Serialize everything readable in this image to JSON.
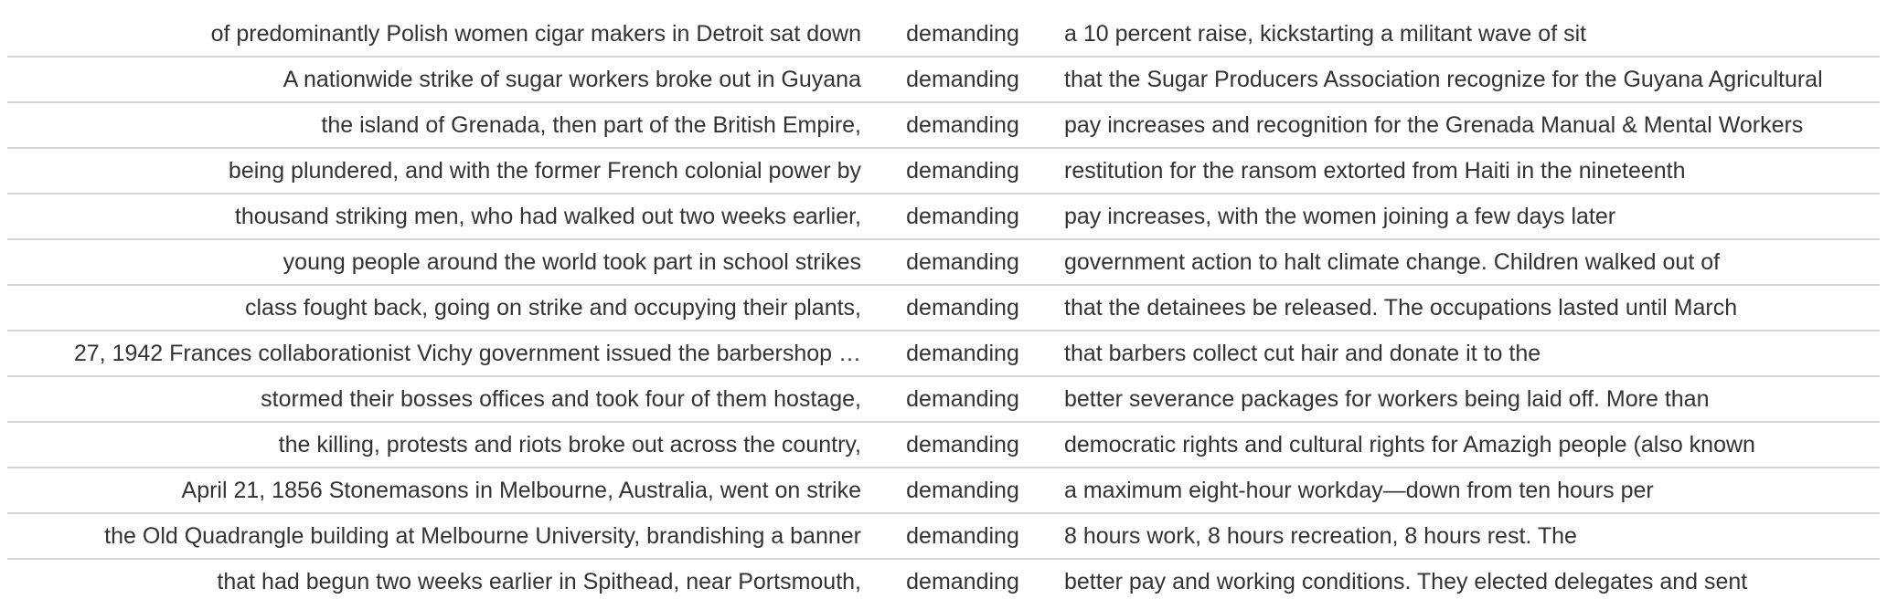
{
  "rows": [
    {
      "left": "of predominantly Polish women cigar makers in Detroit sat down",
      "keyword": "demanding",
      "right": "a 10 percent raise, kickstarting a militant wave of sit"
    },
    {
      "left": "A nationwide strike of sugar workers broke out in Guyana",
      "keyword": "demanding",
      "right": "that the Sugar Producers Association recognize for the Guyana Agricultural"
    },
    {
      "left": "the island of Grenada, then part of the British Empire,",
      "keyword": "demanding",
      "right": "pay increases and recognition for the Grenada Manual & Mental Workers"
    },
    {
      "left": "being plundered, and with the former French colonial power by",
      "keyword": "demanding",
      "right": "restitution for the ransom extorted from Haiti in the nineteenth"
    },
    {
      "left": "thousand striking men, who had walked out two weeks earlier,",
      "keyword": "demanding",
      "right": "pay increases, with the women joining a few days later"
    },
    {
      "left": "young people around the world took part in school strikes",
      "keyword": "demanding",
      "right": "government action to halt climate change. Children walked out of"
    },
    {
      "left": "class fought back, going on strike and occupying their plants,",
      "keyword": "demanding",
      "right": "that the detainees be released. The occupations lasted until March"
    },
    {
      "left": "27, 1942 Frances collaborationist Vichy government issued the barbershop …",
      "keyword": "demanding",
      "right": "that barbers collect cut hair and donate it to the"
    },
    {
      "left": "stormed their bosses offices and took four of them hostage,",
      "keyword": "demanding",
      "right": "better severance packages for workers being laid off. More than"
    },
    {
      "left": "the killing, protests and riots broke out across the country,",
      "keyword": "demanding",
      "right": "democratic rights and cultural rights for Amazigh people (also known"
    },
    {
      "left": "April 21, 1856 Stonemasons in Melbourne, Australia, went on strike",
      "keyword": "demanding",
      "right": "a maximum eight-hour workday—down from ten hours per"
    },
    {
      "left": "the Old Quadrangle building at Melbourne University, brandishing a banner",
      "keyword": "demanding",
      "right": "8 hours work, 8 hours recreation, 8 hours rest. The"
    },
    {
      "left": "that had begun two weeks earlier in Spithead, near Portsmouth,",
      "keyword": "demanding",
      "right": "better pay and working conditions. They elected delegates and sent"
    }
  ]
}
